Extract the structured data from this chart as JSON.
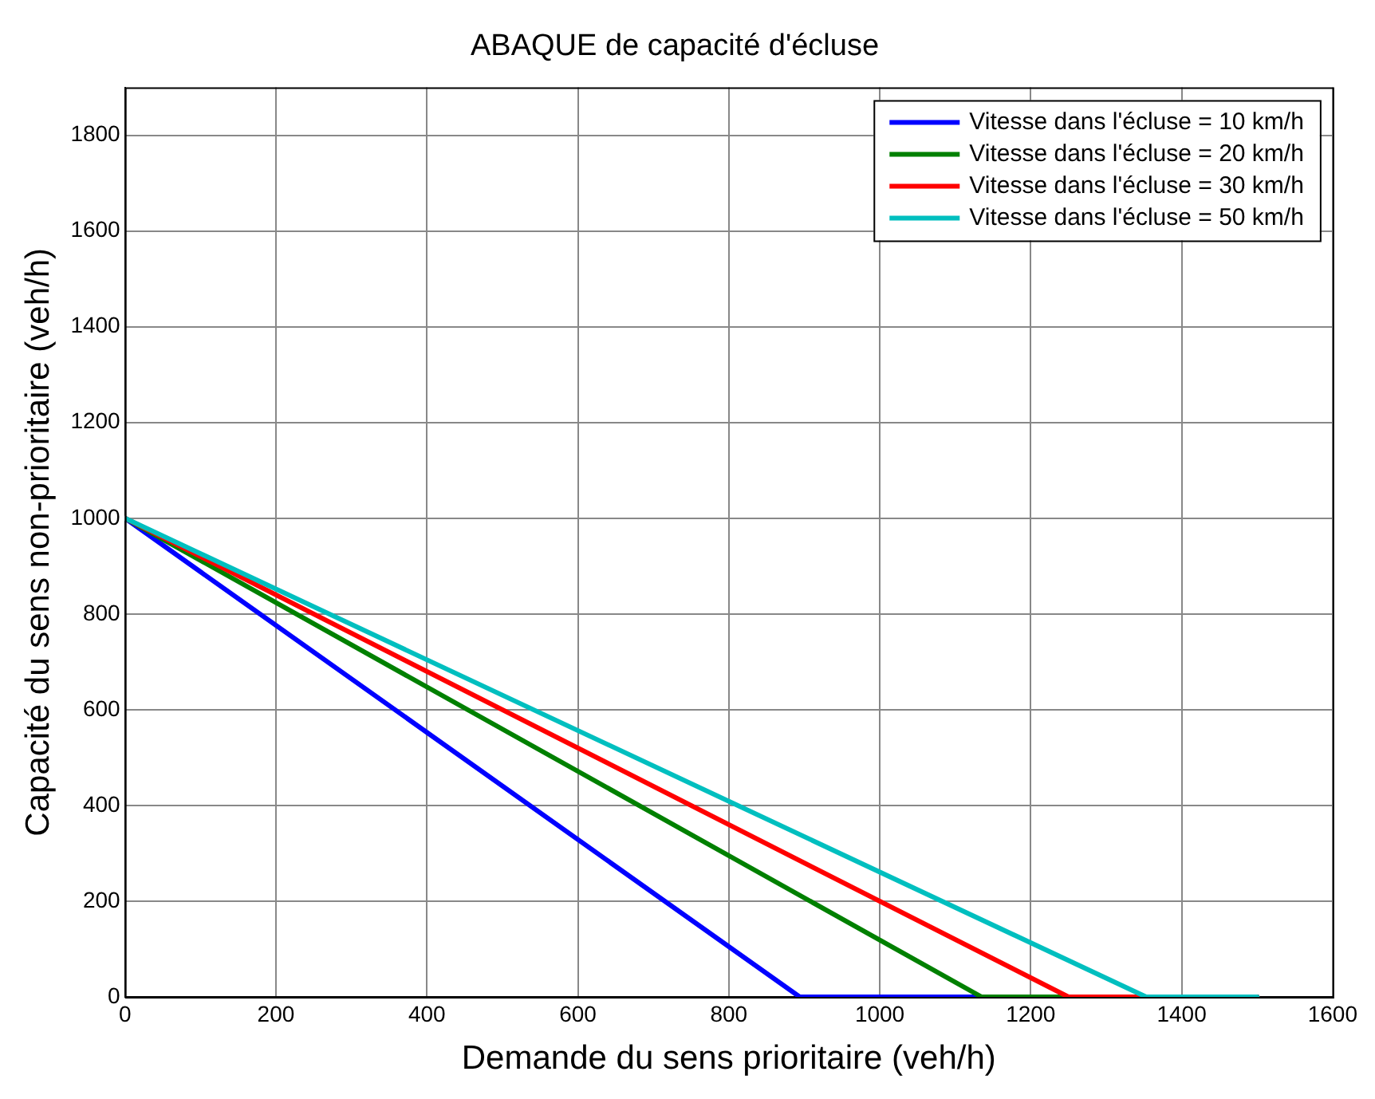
{
  "chart_data": {
    "type": "line",
    "title": "ABAQUE de capacité d'écluse",
    "xlabel": "Demande du sens prioritaire (veh/h)",
    "ylabel": "Capacité du sens non-prioritaire (veh/h)",
    "xlim": [
      0,
      1600
    ],
    "xticks": [
      0,
      200,
      400,
      600,
      800,
      1000,
      1200,
      1400,
      1600
    ],
    "ylim": [
      0,
      1900
    ],
    "yticks": [
      0,
      200,
      400,
      600,
      800,
      1000,
      1200,
      1400,
      1600,
      1800
    ],
    "grid": true,
    "legend": "top right",
    "marker": "none",
    "line_style": "solid",
    "series": [
      {
        "name": "Vitesse dans l'écluse = 10 km/h",
        "color": "#0000ff",
        "x": [
          0,
          894,
          1500
        ],
        "values": [
          1000,
          0,
          0
        ]
      },
      {
        "name": "Vitesse dans l'écluse = 20 km/h",
        "color": "#008000",
        "x": [
          0,
          1135,
          1500
        ],
        "values": [
          1000,
          0,
          0
        ]
      },
      {
        "name": "Vitesse dans l'écluse = 30 km/h",
        "color": "#ff0000",
        "x": [
          0,
          1250,
          1500
        ],
        "values": [
          1000,
          0,
          0
        ]
      },
      {
        "name": "Vitesse dans l'écluse = 50 km/h",
        "color": "#00bfbf",
        "x": [
          0,
          1353,
          1500
        ],
        "values": [
          1000,
          0,
          0
        ]
      }
    ]
  }
}
